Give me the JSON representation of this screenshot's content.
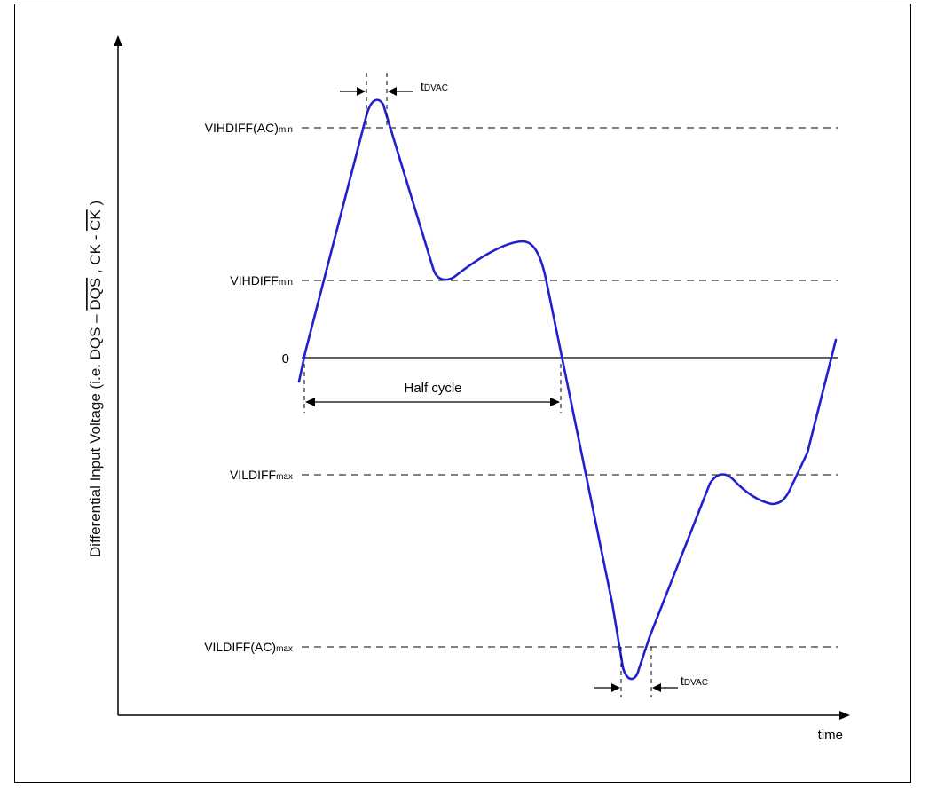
{
  "diagram": {
    "y_axis_label_prefix": "Differential Input Voltage (i.e. DQS – ",
    "y_axis_label_dqs_bar": "DQS",
    "y_axis_label_mid": " , CK - ",
    "y_axis_label_ck_bar": "CK",
    "y_axis_label_suffix": " )",
    "x_axis_label": "time",
    "zero_label": "0",
    "half_cycle_label": "Half cycle",
    "levels": [
      {
        "id": "vihdiff-ac-min",
        "main": "VIHDIFF(AC)",
        "sub": "min"
      },
      {
        "id": "vihdiff-min",
        "main": "VIHDIFF",
        "sub": "min"
      },
      {
        "id": "vildiff-max",
        "main": "VILDIFF",
        "sub": "max"
      },
      {
        "id": "vildiff-ac-max",
        "main": "VILDIFF(AC)",
        "sub": "max"
      }
    ],
    "tdvac_main": "t",
    "tdvac_sub": "DVAC",
    "waveform_color": "#2020d0",
    "line_color": "#000000"
  }
}
